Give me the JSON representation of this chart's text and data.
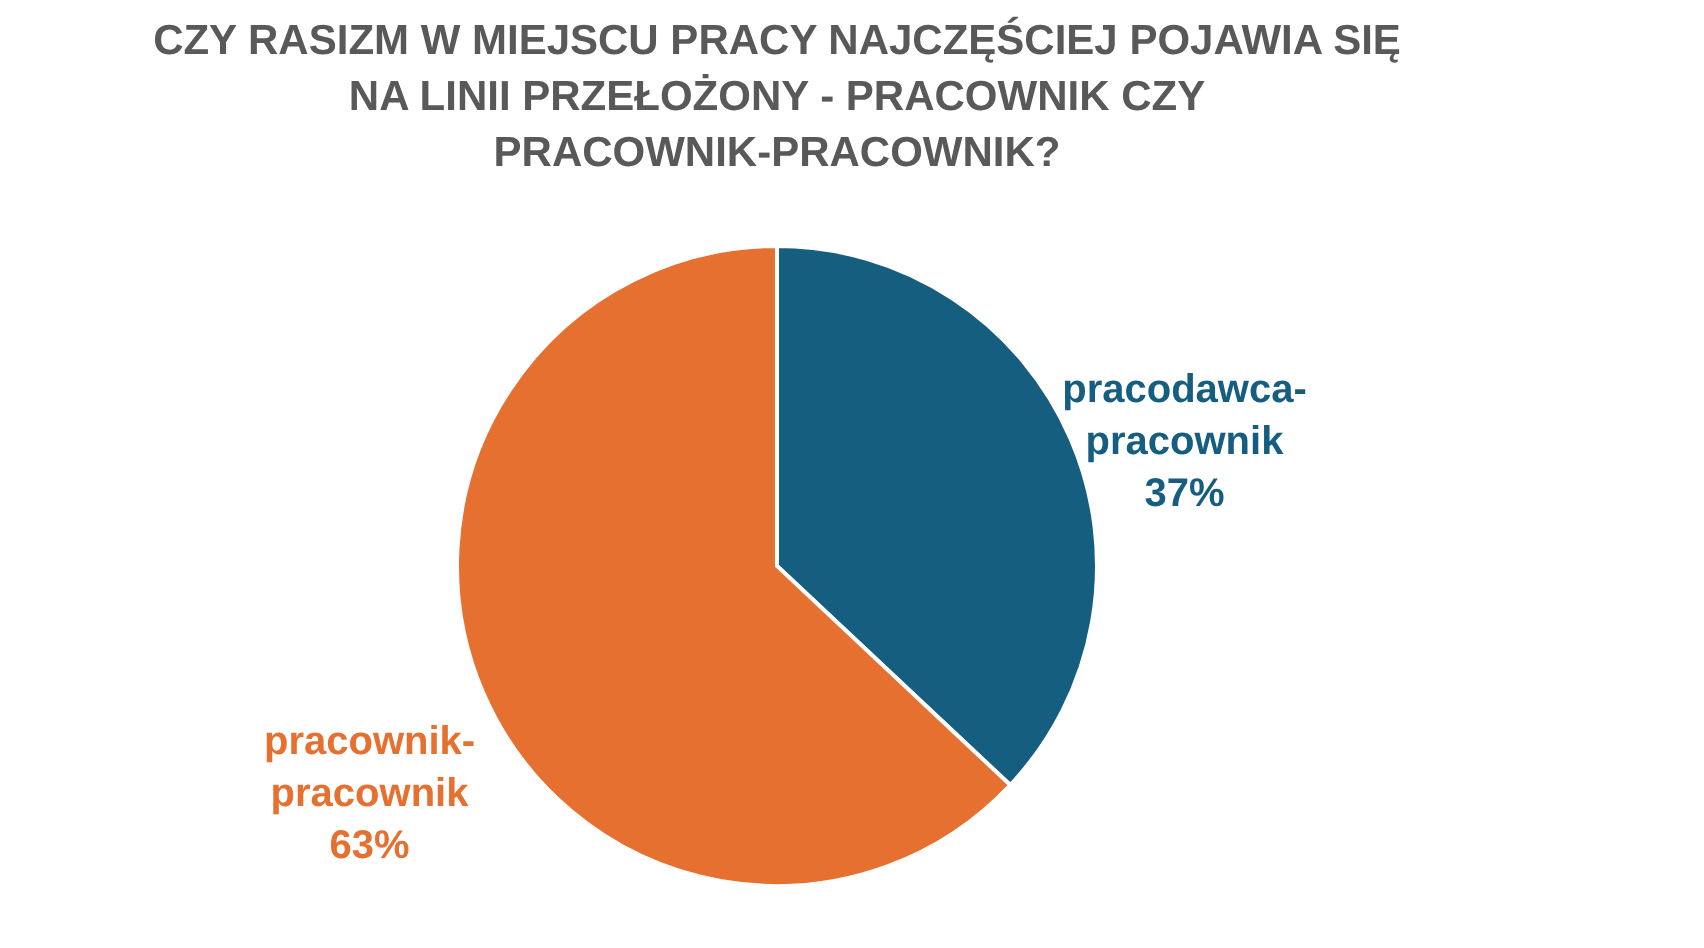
{
  "chart_data": {
    "type": "pie",
    "title": "CZY RASIZM W MIEJSCU PRACY NAJCZĘŚCIEJ POJAWIA SIĘ NA LINII PRZEŁOŻONY - PRACOWNIK CZY PRACOWNIK-PRACOWNIK?",
    "categories": [
      "pracodawca-pracownik",
      "pracownik-pracownik"
    ],
    "values": [
      37,
      63
    ],
    "colors": [
      "#165e80",
      "#e57030"
    ],
    "value_labels": [
      "37%",
      "63%"
    ]
  }
}
